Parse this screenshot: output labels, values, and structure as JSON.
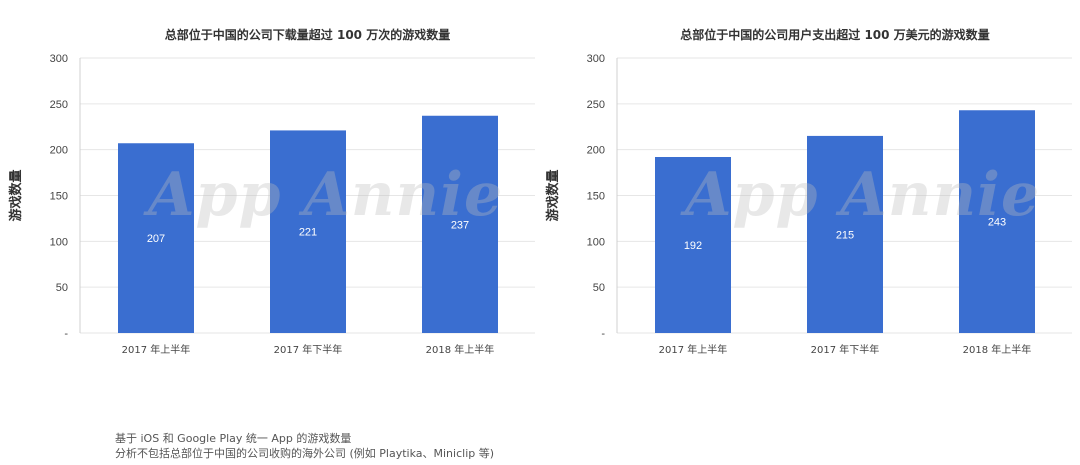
{
  "watermark": "App Annie",
  "colors": {
    "bar": "#3a6ed0",
    "bar_label": "#ffffff",
    "grid": "#e6e6e6",
    "tick": "#444444",
    "axis_title": "#333333"
  },
  "chart_data": [
    {
      "type": "bar",
      "title": "总部位于中国的公司下载量超过 100 万次的游戏数量",
      "ylabel": "游戏数量",
      "xlabel": "",
      "categories": [
        "2017 年上半年",
        "2017 年下半年",
        "2018 年上半年"
      ],
      "values": [
        207,
        221,
        237
      ],
      "ylim": [
        0,
        300
      ],
      "yticks": [
        "-",
        "50",
        "100",
        "150",
        "200",
        "250",
        "300"
      ],
      "grid": true
    },
    {
      "type": "bar",
      "title": "总部位于中国的公司用户支出超过 100 万美元的游戏数量",
      "ylabel": "游戏数量",
      "xlabel": "",
      "categories": [
        "2017 年上半年",
        "2017 年下半年",
        "2018 年上半年"
      ],
      "values": [
        192,
        215,
        243
      ],
      "ylim": [
        0,
        300
      ],
      "yticks": [
        "-",
        "50",
        "100",
        "150",
        "200",
        "250",
        "300"
      ],
      "grid": true
    }
  ],
  "footnote": {
    "line1": "基于 iOS 和 Google Play 统一 App 的游戏数量",
    "line2": "分析不包括总部位于中国的公司收购的海外公司 (例如 Playtika、Miniclip 等)"
  }
}
